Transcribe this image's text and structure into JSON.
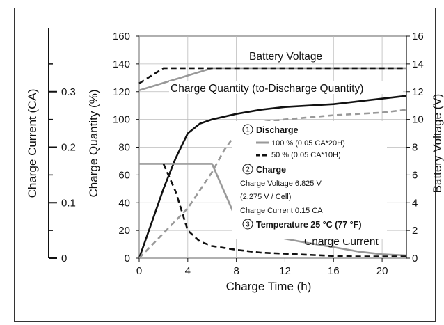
{
  "chart_data": {
    "type": "line",
    "x": {
      "label": "Charge Time (h)",
      "range": [
        0,
        22
      ],
      "ticks": [
        "0",
        "4",
        "8",
        "12",
        "16",
        "20"
      ]
    },
    "axes": {
      "charge_quantity": {
        "label": "Charge Quantity (%)",
        "range": [
          0,
          160
        ],
        "ticks": [
          "0",
          "20",
          "40",
          "60",
          "80",
          "100",
          "120",
          "140",
          "160"
        ]
      },
      "battery_voltage": {
        "label": "Battery Voltage (V)",
        "range": [
          0,
          16
        ],
        "ticks": [
          "0",
          "2",
          "4",
          "6",
          "8",
          "10",
          "12",
          "14",
          "16"
        ]
      },
      "charge_current": {
        "label": "Charge Current (CA)",
        "range": [
          0,
          0.4
        ],
        "ticks": [
          "0",
          "0.1",
          "0.2",
          "0.3"
        ]
      }
    },
    "grid": true,
    "annotations": {
      "battery_voltage": "Battery Voltage",
      "charge_quantity": "Charge Quantity (to-Discharge Quantity)",
      "charge_current": "Charge Current"
    },
    "legend": {
      "discharge_num": "1",
      "discharge_head": "Discharge",
      "item_100": "100 % (0.05 CA*20H)",
      "item_50": "50 % (0.05 CA*10H)",
      "charge_num": "2",
      "charge_head": "Charge",
      "charge_voltage": "Charge Voltage 6.825 V",
      "per_cell": "(2.275 V / Cell)",
      "charge_current": "Charge Current 0.15 CA",
      "temp_num": "3",
      "temperature": "Temperature 25 °C (77 °F)"
    },
    "series": [
      {
        "key": "voltage_100",
        "axis": "battery_voltage",
        "color": "#999999",
        "dash": false,
        "x": [
          0,
          6,
          22
        ],
        "y": [
          12.1,
          13.7,
          13.7
        ]
      },
      {
        "key": "voltage_50",
        "axis": "battery_voltage",
        "color": "#111111",
        "dash": true,
        "x": [
          0,
          2,
          22
        ],
        "y": [
          12.6,
          13.7,
          13.7
        ]
      },
      {
        "key": "quantity_100",
        "axis": "charge_quantity",
        "color": "#111111",
        "dash": false,
        "x": [
          0,
          1,
          2,
          3,
          4,
          5,
          6,
          8,
          10,
          12,
          14,
          16,
          18,
          20,
          22
        ],
        "y": [
          0,
          25,
          50,
          72,
          90,
          97,
          100,
          104,
          107,
          109,
          110,
          111,
          113,
          115,
          117
        ]
      },
      {
        "key": "quantity_50",
        "axis": "charge_quantity",
        "color": "#999999",
        "dash": true,
        "x": [
          0,
          2,
          4,
          6,
          7,
          8,
          10,
          12,
          14,
          16,
          18,
          20,
          22
        ],
        "y": [
          0,
          18,
          36,
          62,
          78,
          90,
          98,
          100,
          101.5,
          103,
          104,
          105,
          107
        ]
      },
      {
        "key": "current_100",
        "axis": "charge_current",
        "color": "#999999",
        "dash": false,
        "x": [
          0,
          6,
          7,
          8,
          9,
          10,
          12,
          14,
          16,
          18,
          20,
          22
        ],
        "y": [
          0.17,
          0.17,
          0.12,
          0.07,
          0.055,
          0.045,
          0.035,
          0.027,
          0.02,
          0.012,
          0.007,
          0.005
        ]
      },
      {
        "key": "current_50",
        "axis": "charge_current",
        "color": "#111111",
        "dash": true,
        "x": [
          2,
          3,
          4,
          5,
          6,
          8,
          10,
          12,
          14,
          16,
          18,
          20,
          22
        ],
        "y": [
          0.17,
          0.12,
          0.05,
          0.03,
          0.022,
          0.015,
          0.01,
          0.008,
          0.006,
          0.004,
          0.003,
          0.003,
          0.003
        ]
      }
    ]
  }
}
